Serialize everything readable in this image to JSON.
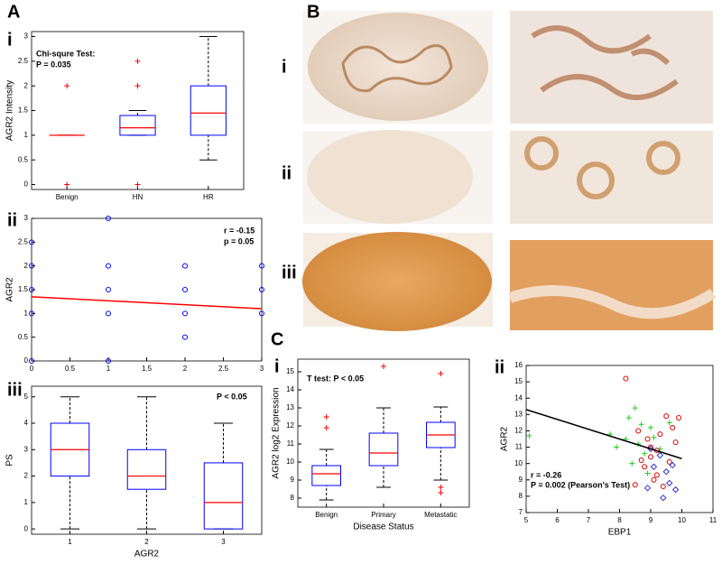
{
  "labels": [
    "A",
    "i",
    "ii",
    "iii",
    "B",
    "i",
    "ii",
    "iii",
    "C",
    "i",
    "ii"
  ],
  "chart_data": [
    {
      "type": "boxplot",
      "categories": [
        "Benign",
        "HN",
        "HR"
      ],
      "ylabel": "AGR2 Intensity",
      "annotations": [
        "Chi-squre Test:",
        "P = 0.035"
      ],
      "ylim": [
        -0.1,
        3.1
      ],
      "yticks": [
        0,
        0.5,
        1,
        1.5,
        2,
        2.5,
        3
      ],
      "box_color": "#0000ff",
      "median_color": "#ff0000",
      "flier_color": "#ff0000",
      "boxes": [
        {
          "whislo": 1,
          "q1": 1,
          "med": 1,
          "q3": 1,
          "whishi": 1,
          "fliers": [
            0,
            2
          ]
        },
        {
          "whislo": 1,
          "q1": 1,
          "med": 1.15,
          "q3": 1.4,
          "whishi": 1.5,
          "fliers": [
            0,
            2,
            2.5
          ]
        },
        {
          "whislo": 0.5,
          "q1": 1,
          "med": 1.45,
          "q3": 2,
          "whishi": 3,
          "fliers": []
        }
      ]
    },
    {
      "type": "scatter",
      "ylabel": "AGR2",
      "annotations": [
        "r = -0.15",
        "p = 0.05"
      ],
      "xlim": [
        0,
        3
      ],
      "xticks": [
        0,
        0.5,
        1,
        1.5,
        2,
        2.5,
        3
      ],
      "ylim": [
        0,
        3
      ],
      "yticks": [
        0,
        0.5,
        1,
        1.5,
        2,
        2.5,
        3
      ],
      "series": [
        {
          "color": "#0000ff",
          "marker": "o",
          "x": [
            0,
            0,
            0,
            0,
            0,
            1,
            1,
            1,
            1,
            1,
            2,
            2,
            2,
            2,
            3,
            3,
            3
          ],
          "y": [
            0,
            1,
            1.5,
            2,
            2.5,
            0,
            1,
            1.5,
            2,
            3,
            0.5,
            1,
            1.5,
            2,
            1,
            1.5,
            2
          ]
        }
      ],
      "fit": {
        "color": "#ff0000",
        "x": [
          0,
          3
        ],
        "y": [
          1.35,
          1.1
        ]
      }
    },
    {
      "type": "boxplot",
      "categories": [
        "1",
        "2",
        "3"
      ],
      "xlabel": "AGR2",
      "ylabel": "PS",
      "annotations": [
        "P < 0.05"
      ],
      "ylim": [
        -0.2,
        5.4
      ],
      "yticks": [
        0,
        1,
        2,
        3,
        4,
        5
      ],
      "box_color": "#0000ff",
      "median_color": "#ff0000",
      "flier_color": "#ff0000",
      "boxes": [
        {
          "whislo": 0,
          "q1": 2,
          "med": 3,
          "q3": 4,
          "whishi": 5,
          "fliers": []
        },
        {
          "whislo": 0,
          "q1": 1.5,
          "med": 2,
          "q3": 3,
          "whishi": 5,
          "fliers": []
        },
        {
          "whislo": 0,
          "q1": 0,
          "med": 1,
          "q3": 2.5,
          "whishi": 4,
          "fliers": []
        }
      ]
    },
    {
      "type": "boxplot",
      "categories": [
        "Benign",
        "Primary",
        "Metastatic"
      ],
      "xlabel": "Disease Status",
      "ylabel": "AGR2 log2 Expression",
      "annotations": [
        "T test: P < 0.05"
      ],
      "ylim": [
        7.5,
        15.7
      ],
      "yticks": [
        8,
        9,
        10,
        11,
        12,
        13,
        14,
        15
      ],
      "box_color": "#0000ff",
      "median_color": "#ff0000",
      "flier_color": "#ff0000",
      "boxes": [
        {
          "whislo": 7.9,
          "q1": 8.7,
          "med": 9.35,
          "q3": 9.8,
          "whishi": 10.7,
          "fliers": [
            11.9,
            12.5
          ]
        },
        {
          "whislo": 8.6,
          "q1": 9.8,
          "med": 10.5,
          "q3": 11.6,
          "whishi": 13.0,
          "fliers": [
            15.3
          ]
        },
        {
          "whislo": 9.0,
          "q1": 10.8,
          "med": 11.5,
          "q3": 12.2,
          "whishi": 13.05,
          "fliers": [
            14.9,
            8.6,
            8.3
          ]
        }
      ]
    },
    {
      "type": "scatter",
      "xlabel": "EBP1",
      "ylabel": "AGR2",
      "annotations": [
        "r = -0.26",
        "P = 0.002  (Pearson's Test)"
      ],
      "xlim": [
        5,
        11
      ],
      "xticks": [
        5,
        6,
        7,
        8,
        9,
        10,
        11
      ],
      "ylim": [
        7,
        16
      ],
      "yticks": [
        7,
        8,
        9,
        10,
        11,
        12,
        13,
        14,
        15,
        16
      ],
      "series": [
        {
          "color": "#22cc22",
          "marker": "+",
          "x": [
            7.7,
            8.3,
            8.5,
            8.6,
            8.8,
            9.0,
            9.1,
            9.3,
            8.4,
            8.9,
            8.2,
            9.6,
            8.7,
            7.9,
            5.1
          ],
          "y": [
            11.8,
            12.8,
            13.4,
            11.2,
            10.6,
            12.2,
            11.6,
            10.9,
            10.0,
            9.4,
            11.5,
            12.5,
            12.4,
            11.0,
            11.7
          ]
        },
        {
          "color": "#dd0000",
          "marker": "o",
          "x": [
            8.2,
            8.6,
            8.9,
            9.0,
            9.2,
            9.3,
            9.5,
            9.7,
            8.8,
            9.1,
            9.4,
            9.6,
            8.5,
            9.0,
            9.8,
            8.7,
            9.2,
            9.9
          ],
          "y": [
            15.2,
            12.0,
            11.5,
            10.4,
            10.8,
            11.8,
            12.9,
            12.2,
            9.8,
            9.0,
            8.6,
            10.1,
            8.7,
            11.0,
            11.3,
            10.2,
            9.3,
            12.8
          ]
        },
        {
          "color": "#3333cc",
          "marker": "d",
          "x": [
            8.9,
            9.1,
            9.3,
            9.5,
            9.6,
            9.8,
            9.4,
            9.0,
            9.7
          ],
          "y": [
            8.5,
            9.8,
            10.5,
            9.5,
            8.8,
            8.4,
            7.9,
            10.9,
            9.9
          ]
        }
      ],
      "fit": {
        "color": "#000000",
        "x": [
          5,
          10
        ],
        "y": [
          13.3,
          10.3
        ]
      }
    }
  ]
}
